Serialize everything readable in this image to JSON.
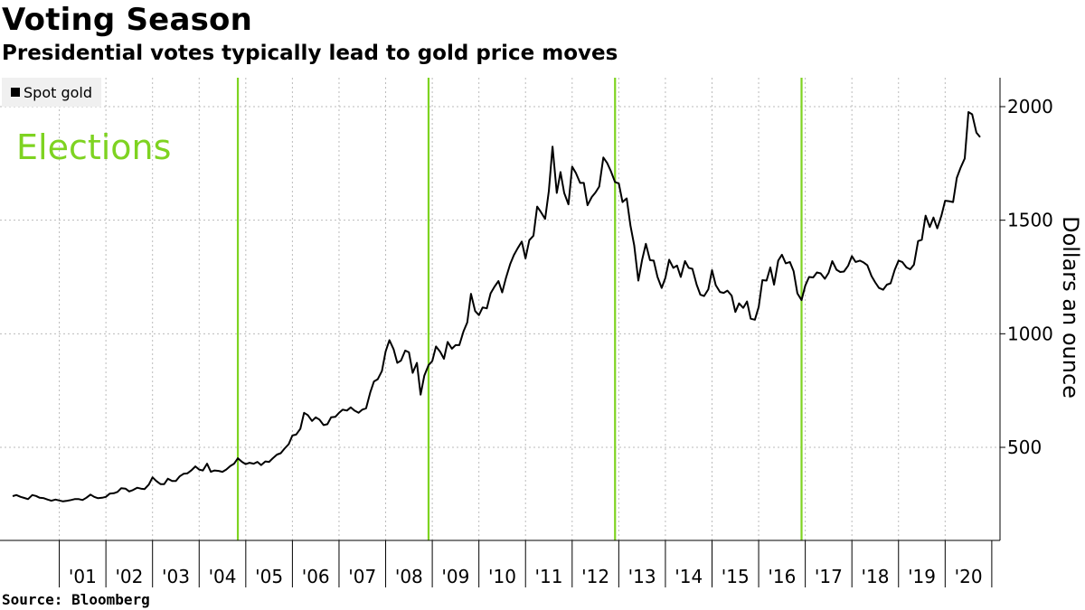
{
  "header": {
    "title": "Voting Season",
    "subtitle": "Presidential votes typically lead to gold price moves"
  },
  "footer": {
    "source": "Source:  Bloomberg"
  },
  "colors": {
    "line": "#000000",
    "election": "#7ed321",
    "grid": "#bbbbbb",
    "legend_bg": "#f0f0f0"
  },
  "chart_data": {
    "type": "line",
    "title": "Voting Season",
    "subtitle": "Presidential votes typically lead to gold price moves",
    "ylabel": "Dollars an ounce",
    "xlabel": "",
    "ylim": [
      160,
      2150
    ],
    "xlim": [
      2000.0,
      2020.75
    ],
    "yticks": [
      500,
      1000,
      1500,
      2000
    ],
    "ytick_labels": [
      "500",
      "1000",
      "1500",
      "2000"
    ],
    "xtick_labels": [
      "'01",
      "'02",
      "'03",
      "'04",
      "'05",
      "'06",
      "'07",
      "'08",
      "'09",
      "'10",
      "'11",
      "'12",
      "'13",
      "'14",
      "'15",
      "'16",
      "'17",
      "'18",
      "'19",
      "'20"
    ],
    "legend": {
      "entries": [
        "Spot gold"
      ],
      "position": "top-left"
    },
    "annotation": {
      "text": "Elections",
      "color": "#7ed321"
    },
    "election_dates": [
      2004.83,
      2008.92,
      2012.92,
      2016.92
    ],
    "series": [
      {
        "name": "Spot gold",
        "color": "#000000",
        "x": [
          2000.0,
          2000.08,
          2000.17,
          2000.25,
          2000.33,
          2000.42,
          2000.5,
          2000.58,
          2000.67,
          2000.75,
          2000.83,
          2000.92,
          2001.0,
          2001.08,
          2001.17,
          2001.25,
          2001.33,
          2001.42,
          2001.5,
          2001.58,
          2001.67,
          2001.75,
          2001.83,
          2001.92,
          2002.0,
          2002.08,
          2002.17,
          2002.25,
          2002.33,
          2002.42,
          2002.5,
          2002.58,
          2002.67,
          2002.75,
          2002.83,
          2002.92,
          2003.0,
          2003.08,
          2003.17,
          2003.25,
          2003.33,
          2003.42,
          2003.5,
          2003.58,
          2003.67,
          2003.75,
          2003.83,
          2003.92,
          2004.0,
          2004.08,
          2004.17,
          2004.25,
          2004.33,
          2004.42,
          2004.5,
          2004.58,
          2004.67,
          2004.75,
          2004.83,
          2004.92,
          2005.0,
          2005.08,
          2005.17,
          2005.25,
          2005.33,
          2005.42,
          2005.5,
          2005.58,
          2005.67,
          2005.75,
          2005.83,
          2005.92,
          2006.0,
          2006.08,
          2006.17,
          2006.25,
          2006.33,
          2006.42,
          2006.5,
          2006.58,
          2006.67,
          2006.75,
          2006.83,
          2006.92,
          2007.0,
          2007.08,
          2007.17,
          2007.25,
          2007.33,
          2007.42,
          2007.5,
          2007.58,
          2007.67,
          2007.75,
          2007.83,
          2007.92,
          2008.0,
          2008.08,
          2008.17,
          2008.25,
          2008.33,
          2008.42,
          2008.5,
          2008.58,
          2008.67,
          2008.75,
          2008.83,
          2008.92,
          2009.0,
          2009.08,
          2009.17,
          2009.25,
          2009.33,
          2009.42,
          2009.5,
          2009.58,
          2009.67,
          2009.75,
          2009.83,
          2009.92,
          2010.0,
          2010.08,
          2010.17,
          2010.25,
          2010.33,
          2010.42,
          2010.5,
          2010.58,
          2010.67,
          2010.75,
          2010.83,
          2010.92,
          2011.0,
          2011.08,
          2011.17,
          2011.25,
          2011.33,
          2011.42,
          2011.5,
          2011.58,
          2011.67,
          2011.75,
          2011.83,
          2011.92,
          2012.0,
          2012.08,
          2012.17,
          2012.25,
          2012.33,
          2012.42,
          2012.5,
          2012.58,
          2012.67,
          2012.75,
          2012.83,
          2012.92,
          2013.0,
          2013.08,
          2013.17,
          2013.25,
          2013.33,
          2013.42,
          2013.5,
          2013.58,
          2013.67,
          2013.75,
          2013.83,
          2013.92,
          2014.0,
          2014.08,
          2014.17,
          2014.25,
          2014.33,
          2014.42,
          2014.5,
          2014.58,
          2014.67,
          2014.75,
          2014.83,
          2014.92,
          2015.0,
          2015.08,
          2015.17,
          2015.25,
          2015.33,
          2015.42,
          2015.5,
          2015.58,
          2015.67,
          2015.75,
          2015.83,
          2015.92,
          2016.0,
          2016.08,
          2016.17,
          2016.25,
          2016.33,
          2016.42,
          2016.5,
          2016.58,
          2016.67,
          2016.75,
          2016.83,
          2016.92,
          2017.0,
          2017.08,
          2017.17,
          2017.25,
          2017.33,
          2017.42,
          2017.5,
          2017.58,
          2017.67,
          2017.75,
          2017.83,
          2017.92,
          2018.0,
          2018.08,
          2018.17,
          2018.25,
          2018.33,
          2018.42,
          2018.5,
          2018.58,
          2018.67,
          2018.75,
          2018.83,
          2018.92,
          2019.0,
          2019.08,
          2019.17,
          2019.25,
          2019.33,
          2019.42,
          2019.5,
          2019.58,
          2019.67,
          2019.75,
          2019.83,
          2019.92,
          2020.0,
          2020.08,
          2020.17,
          2020.25,
          2020.33,
          2020.42,
          2020.5,
          2020.58,
          2020.67,
          2020.75
        ],
        "y": [
          285,
          290,
          282,
          277,
          272,
          290,
          286,
          278,
          276,
          270,
          265,
          270,
          266,
          262,
          265,
          268,
          272,
          272,
          268,
          278,
          292,
          282,
          276,
          278,
          282,
          296,
          298,
          304,
          320,
          318,
          306,
          312,
          322,
          318,
          316,
          336,
          368,
          352,
          338,
          338,
          362,
          352,
          352,
          372,
          384,
          386,
          398,
          416,
          402,
          398,
          428,
          392,
          398,
          396,
          392,
          402,
          418,
          428,
          452,
          436,
          426,
          432,
          428,
          436,
          422,
          438,
          436,
          452,
          468,
          474,
          494,
          514,
          552,
          556,
          582,
          652,
          642,
          616,
          632,
          622,
          598,
          602,
          632,
          634,
          652,
          666,
          662,
          676,
          662,
          652,
          666,
          672,
          742,
          790,
          800,
          836,
          922,
          972,
          932,
          872,
          882,
          926,
          918,
          828,
          872,
          732,
          816,
          862,
          880,
          944,
          920,
          890,
          964,
          934,
          950,
          950,
          1010,
          1050,
          1176,
          1100,
          1082,
          1116,
          1112,
          1178,
          1206,
          1232,
          1182,
          1246,
          1306,
          1346,
          1376,
          1406,
          1332,
          1412,
          1432,
          1560,
          1536,
          1506,
          1628,
          1824,
          1620,
          1712,
          1620,
          1570,
          1736,
          1708,
          1664,
          1664,
          1566,
          1602,
          1622,
          1648,
          1776,
          1752,
          1716,
          1668,
          1662,
          1580,
          1596,
          1476,
          1390,
          1234,
          1324,
          1396,
          1324,
          1322,
          1250,
          1202,
          1246,
          1326,
          1290,
          1300,
          1250,
          1320,
          1290,
          1286,
          1216,
          1172,
          1166,
          1196,
          1280,
          1214,
          1184,
          1180,
          1190,
          1168,
          1096,
          1134,
          1114,
          1142,
          1066,
          1062,
          1118,
          1236,
          1234,
          1292,
          1216,
          1322,
          1348,
          1310,
          1316,
          1276,
          1178,
          1148,
          1212,
          1250,
          1248,
          1270,
          1266,
          1242,
          1268,
          1320,
          1282,
          1272,
          1274,
          1300,
          1342,
          1316,
          1322,
          1314,
          1302,
          1254,
          1226,
          1202,
          1194,
          1216,
          1222,
          1282,
          1322,
          1316,
          1292,
          1284,
          1304,
          1408,
          1414,
          1520,
          1470,
          1512,
          1464,
          1520,
          1586,
          1584,
          1580,
          1686,
          1730,
          1772,
          1976,
          1966,
          1886,
          1866
        ]
      }
    ]
  }
}
